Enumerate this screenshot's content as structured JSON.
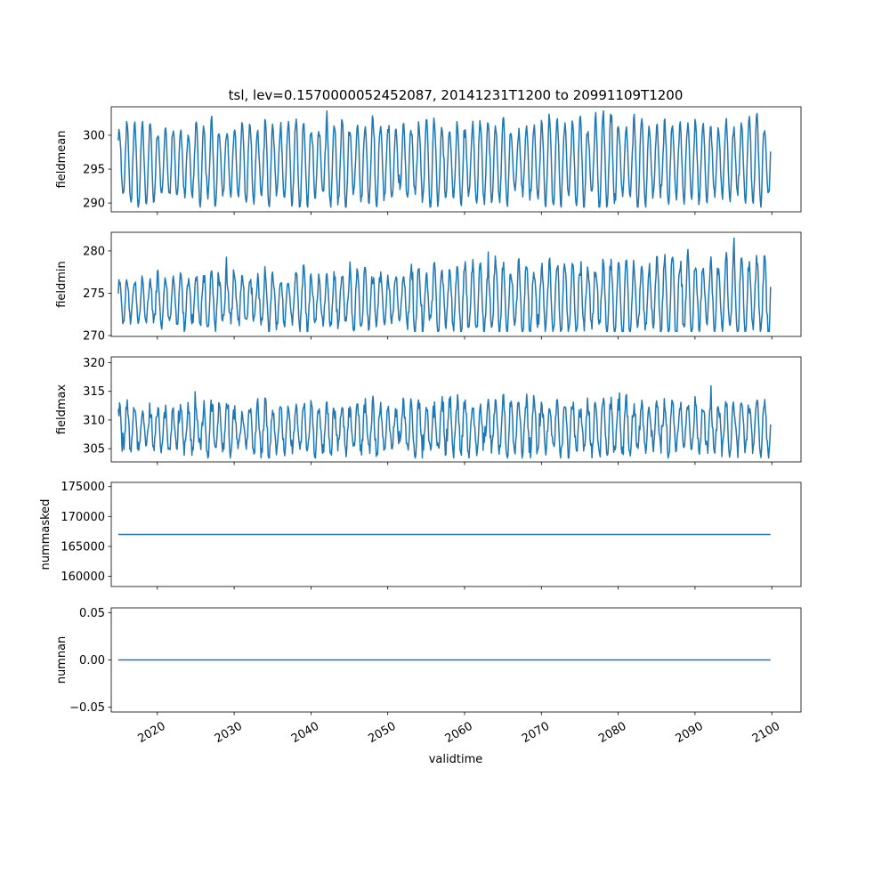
{
  "figure": {
    "title": "tsl, lev=0.1570000052452087, 20141231T1200 to 20991109T1200",
    "xlabel": "validtime"
  },
  "chart_data": [
    {
      "type": "line",
      "ylabel": "fieldmean",
      "xlim": [
        2014.0,
        2103.8
      ],
      "ylim": [
        288.7,
        304.2
      ],
      "yticks": [
        "290",
        "295",
        "300"
      ],
      "xticks": [
        "2020",
        "2030",
        "2040",
        "2050",
        "2060",
        "2070",
        "2080",
        "2090",
        "2100"
      ],
      "show_xtick_labels": false,
      "series": {
        "x_start": "2014-12",
        "x_end": "2099-11",
        "period": 1,
        "baseline": 295.8,
        "amplitude": 5.1,
        "amplitude_growth": 0.7,
        "trend": 0.3,
        "noise": 0.7,
        "min_clip": 289.4,
        "max_clip": 303.6
      }
    },
    {
      "type": "line",
      "ylabel": "fieldmin",
      "xlim": [
        2014.0,
        2103.8
      ],
      "ylim": [
        269.9,
        282.2
      ],
      "yticks": [
        "270",
        "275",
        "280"
      ],
      "xticks": [
        "2020",
        "2030",
        "2040",
        "2050",
        "2060",
        "2070",
        "2080",
        "2090",
        "2100"
      ],
      "show_xtick_labels": false,
      "series": {
        "x_start": "2014-12",
        "x_end": "2099-11",
        "period": 1,
        "baseline": 274.0,
        "amplitude": 2.3,
        "amplitude_growth": 2.3,
        "trend": 0.6,
        "noise": 0.8,
        "min_clip": 270.5,
        "max_clip": 281.8
      }
    },
    {
      "type": "line",
      "ylabel": "fieldmax",
      "xlim": [
        2014.0,
        2103.8
      ],
      "ylim": [
        302.7,
        321.0
      ],
      "yticks": [
        "305",
        "310",
        "315",
        "320"
      ],
      "xticks": [
        "2020",
        "2030",
        "2040",
        "2050",
        "2060",
        "2070",
        "2080",
        "2090",
        "2100"
      ],
      "show_xtick_labels": false,
      "series": {
        "x_start": "2014-12",
        "x_end": "2099-11",
        "period": 1,
        "baseline": 308.3,
        "amplitude": 3.6,
        "amplitude_growth": 0.6,
        "trend": 0.5,
        "noise": 1.4,
        "min_clip": 303.4,
        "max_clip": 320.3
      }
    },
    {
      "type": "line",
      "ylabel": "nummasked",
      "xlim": [
        2014.0,
        2103.8
      ],
      "ylim": [
        158300,
        175700
      ],
      "yticks": [
        "160000",
        "165000",
        "170000",
        "175000"
      ],
      "xticks": [
        "2020",
        "2030",
        "2040",
        "2050",
        "2060",
        "2070",
        "2080",
        "2090",
        "2100"
      ],
      "show_xtick_labels": false,
      "constant": 167000,
      "x_range": [
        "2014-12",
        "2099-11"
      ]
    },
    {
      "type": "line",
      "ylabel": "numnan",
      "xlim": [
        2014.0,
        2103.8
      ],
      "ylim": [
        -0.055,
        0.055
      ],
      "yticks": [
        "−0.05",
        "0.00",
        "0.05"
      ],
      "yticks_values": [
        -0.05,
        0.0,
        0.05
      ],
      "xticks": [
        "2020",
        "2030",
        "2040",
        "2050",
        "2060",
        "2070",
        "2080",
        "2090",
        "2100"
      ],
      "show_xtick_labels": true,
      "constant": 0,
      "x_range": [
        "2014-12",
        "2099-11"
      ]
    }
  ],
  "colors": {
    "line": "#1f77b4",
    "axes": "#000000",
    "background": "#ffffff"
  }
}
